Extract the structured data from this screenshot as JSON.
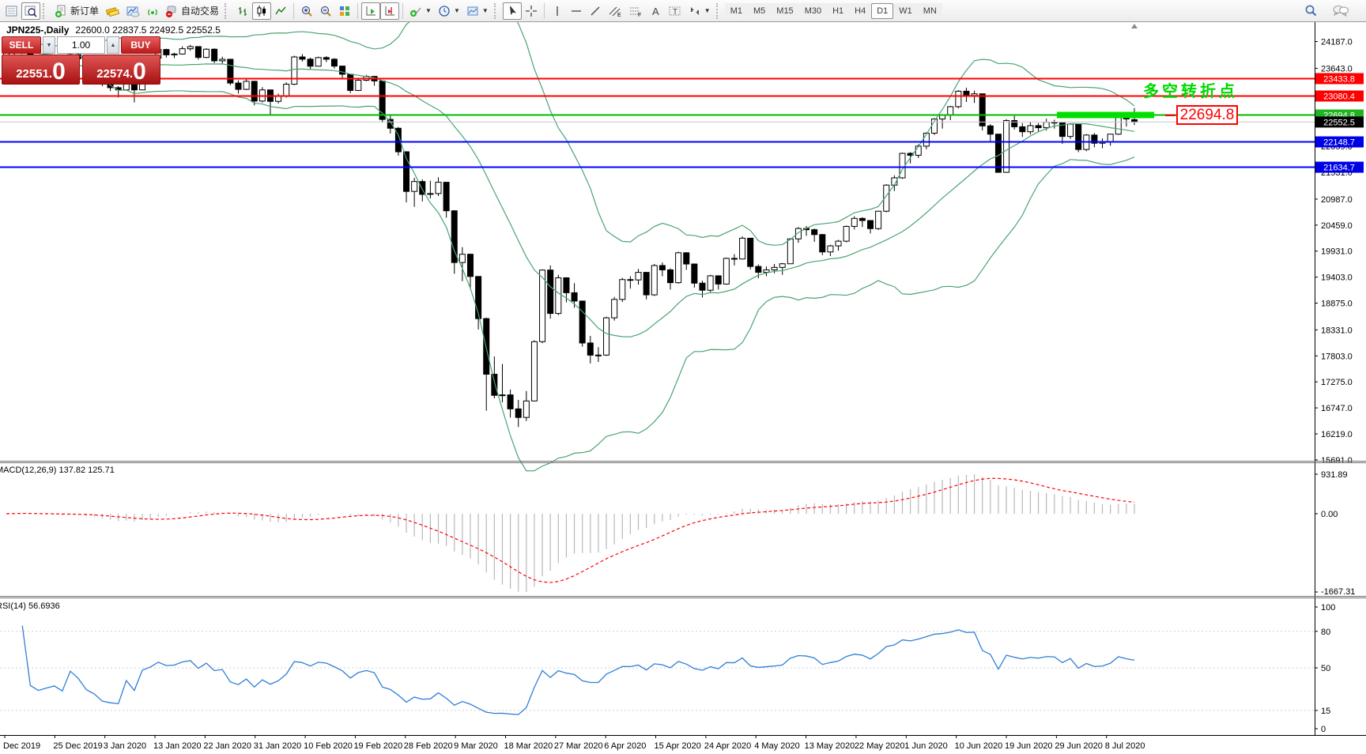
{
  "toolbar": {
    "new_order_label": "新订单",
    "autotrading_label": "自动交易",
    "timeframes": [
      "M1",
      "M5",
      "M15",
      "M30",
      "H1",
      "H4",
      "D1",
      "W1",
      "MN"
    ],
    "active_timeframe": "D1"
  },
  "chart_header": {
    "title": "JPN225-,Daily",
    "ohlc": "22600.0 22837.5 22492.5 22552.5"
  },
  "trade_panel": {
    "sell_label": "SELL",
    "buy_label": "BUY",
    "volume": "1.00",
    "sell_price_main": "22551.",
    "sell_price_pips": "0",
    "buy_price_main": "22574.",
    "buy_price_pips": "0"
  },
  "annotations": {
    "turning_point": "多空转折点",
    "turning_point_color": "#00d800",
    "callout": "22694.8",
    "callout_color": "#ff0000"
  },
  "levels": [
    {
      "value": 23433.8,
      "label": "23433.8",
      "line": "#ff0000",
      "badge": "#ff0000",
      "width": 2
    },
    {
      "value": 23080.4,
      "label": "23080.4",
      "line": "#ff0000",
      "badge": "#ff0000",
      "width": 2
    },
    {
      "value": 22694.8,
      "label": "22694.8",
      "line": "#00bb00",
      "badge": "#22b322",
      "width": 2
    },
    {
      "value": 22552.5,
      "label": "22552.5",
      "line": "#c8c8c8",
      "badge": "#000000",
      "width": 1
    },
    {
      "value": 22148.7,
      "label": "22148.7",
      "line": "#0000ff",
      "badge": "#0000e6",
      "width": 2
    },
    {
      "value": 21634.7,
      "label": "21634.7",
      "line": "#0000ff",
      "badge": "#0000e6",
      "width": 2
    }
  ],
  "highlight": {
    "price": 22694.8,
    "x_from": 1337,
    "x_to": 1460,
    "color": "#00e000",
    "thickness": 8
  },
  "axis": {
    "main_ticks": [
      "24187.0",
      "23643.0",
      "22059.0",
      "21531.0",
      "20987.0",
      "20459.0",
      "19931.0",
      "19403.0",
      "18875.0",
      "18331.0",
      "17803.0",
      "17275.0",
      "16747.0",
      "16219.0",
      "15691.0"
    ]
  },
  "macd": {
    "label": "MACD(12,26,9) 137.82 125.71",
    "fast": 12,
    "slow": 26,
    "signal": 9,
    "values": [
      "137.82",
      "125.71"
    ],
    "axis_top": "931.89",
    "axis_zero": "0.00",
    "axis_bottom": "-1667.31",
    "hist_color": "#b8b8b8",
    "signal_color": "#ff0000"
  },
  "rsi": {
    "label": "RSI(14) 56.6936",
    "period": 14,
    "value": "56.6936",
    "axis": [
      "100",
      "80",
      "50",
      "15",
      "0"
    ],
    "level_lines": [
      80,
      50,
      15
    ],
    "line_color": "#2f7ed8"
  },
  "dates": [
    "Dec 2019",
    "25 Dec 2019",
    "3 Jan 2020",
    "13 Jan 2020",
    "22 Jan 2020",
    "31 Jan 2020",
    "10 Feb 2020",
    "19 Feb 2020",
    "28 Feb 2020",
    "9 Mar 2020",
    "18 Mar 2020",
    "27 Mar 2020",
    "6 Apr 2020",
    "15 Apr 2020",
    "24 Apr 2020",
    "4 May 2020",
    "13 May 2020",
    "22 May 2020",
    "1 Jun 2020",
    "10 Jun 2020",
    "19 Jun 2020",
    "29 Jun 2020",
    "8 Jul 2020"
  ],
  "chart_data": {
    "type": "candlestick",
    "symbol": "JPN225-",
    "period": "Daily",
    "ylim": [
      15673,
      24581
    ],
    "colors": {
      "up": "#ffffff",
      "down": "#000000",
      "wick": "#000000"
    },
    "indicators": {
      "bollinger": {
        "period": 20,
        "deviation": 2,
        "color": "#4aa473"
      }
    },
    "candles": [
      [
        23900,
        24030,
        23850,
        23950
      ],
      [
        23950,
        24090,
        23900,
        24060
      ],
      [
        24060,
        24080,
        23950,
        24040
      ],
      [
        24040,
        24060,
        23800,
        23860
      ],
      [
        23860,
        23900,
        23760,
        23820
      ],
      [
        23820,
        23880,
        23770,
        23830
      ],
      [
        23830,
        23890,
        23780,
        23840
      ],
      [
        23840,
        23860,
        23740,
        23790
      ],
      [
        23790,
        23950,
        23780,
        23920
      ],
      [
        23920,
        23940,
        23790,
        23840
      ],
      [
        23840,
        23860,
        23600,
        23660
      ],
      [
        23660,
        23700,
        23480,
        23560
      ],
      [
        23560,
        23620,
        23280,
        23320
      ],
      [
        23320,
        23380,
        23180,
        23250
      ],
      [
        23250,
        23280,
        23050,
        23205
      ],
      [
        23205,
        23600,
        23190,
        23575
      ],
      [
        23575,
        23580,
        22950,
        23205
      ],
      [
        23205,
        23760,
        23200,
        23740
      ],
      [
        23740,
        23900,
        23700,
        23850
      ],
      [
        23850,
        24060,
        23840,
        24025
      ],
      [
        24025,
        24040,
        23860,
        23917
      ],
      [
        23917,
        23960,
        23850,
        23933
      ],
      [
        23933,
        24090,
        23920,
        24041
      ],
      [
        24041,
        24120,
        24000,
        24084
      ],
      [
        24084,
        24090,
        23820,
        23864
      ],
      [
        23864,
        24050,
        23850,
        24031
      ],
      [
        24031,
        24050,
        23750,
        23795
      ],
      [
        23795,
        23880,
        23740,
        23827
      ],
      [
        23827,
        23830,
        23300,
        23344
      ],
      [
        23344,
        23400,
        23130,
        23216
      ],
      [
        23216,
        23420,
        23200,
        23379
      ],
      [
        23379,
        23390,
        22890,
        22978
      ],
      [
        22978,
        23260,
        22950,
        23205
      ],
      [
        23205,
        23210,
        22700,
        22972
      ],
      [
        22972,
        23130,
        22930,
        23085
      ],
      [
        23085,
        23360,
        23050,
        23320
      ],
      [
        23320,
        23900,
        23300,
        23874
      ],
      [
        23874,
        23930,
        23780,
        23828
      ],
      [
        23828,
        23860,
        23610,
        23686
      ],
      [
        23686,
        23880,
        23680,
        23861
      ],
      [
        23861,
        23890,
        23770,
        23828
      ],
      [
        23828,
        23850,
        23640,
        23688
      ],
      [
        23688,
        23700,
        23450,
        23523
      ],
      [
        23523,
        23530,
        23140,
        23194
      ],
      [
        23194,
        23430,
        23180,
        23401
      ],
      [
        23401,
        23510,
        23380,
        23479
      ],
      [
        23479,
        23490,
        23290,
        23387
      ],
      [
        23387,
        23390,
        22540,
        22605
      ],
      [
        22605,
        22710,
        22320,
        22426
      ],
      [
        22426,
        22450,
        21870,
        21948
      ],
      [
        21948,
        21960,
        20920,
        21143
      ],
      [
        21143,
        21420,
        20830,
        21344
      ],
      [
        21344,
        21390,
        20940,
        21083
      ],
      [
        21083,
        21360,
        21000,
        21100
      ],
      [
        21100,
        21430,
        21050,
        21329
      ],
      [
        21329,
        21330,
        20610,
        20750
      ],
      [
        20750,
        20760,
        19470,
        19699
      ],
      [
        19699,
        20010,
        19320,
        19867
      ],
      [
        19867,
        19880,
        19150,
        19416
      ],
      [
        19416,
        19420,
        18340,
        18560
      ],
      [
        18560,
        18580,
        16690,
        17431
      ],
      [
        17431,
        17790,
        16940,
        17002
      ],
      [
        17002,
        17640,
        16860,
        17011
      ],
      [
        17011,
        17120,
        16550,
        16727
      ],
      [
        16727,
        16910,
        16358,
        16553
      ],
      [
        16553,
        17090,
        16480,
        16888
      ],
      [
        16888,
        18120,
        16880,
        18092
      ],
      [
        18092,
        19560,
        18060,
        19546
      ],
      [
        19546,
        19640,
        18560,
        18665
      ],
      [
        18665,
        19450,
        18630,
        19389
      ],
      [
        19389,
        19400,
        18890,
        19085
      ],
      [
        19085,
        19280,
        18780,
        18917
      ],
      [
        18917,
        18920,
        17990,
        18065
      ],
      [
        18065,
        18210,
        17650,
        17818
      ],
      [
        17818,
        17980,
        17680,
        17820
      ],
      [
        17820,
        18600,
        17800,
        18576
      ],
      [
        18576,
        19000,
        18520,
        18950
      ],
      [
        18950,
        19390,
        18900,
        19353
      ],
      [
        19353,
        19420,
        19170,
        19346
      ],
      [
        19346,
        19570,
        19250,
        19499
      ],
      [
        19499,
        19500,
        18950,
        19043
      ],
      [
        19043,
        19670,
        19020,
        19638
      ],
      [
        19638,
        19700,
        19420,
        19550
      ],
      [
        19550,
        19580,
        19150,
        19290
      ],
      [
        19290,
        19920,
        19270,
        19897
      ],
      [
        19897,
        19910,
        19550,
        19669
      ],
      [
        19669,
        19680,
        19190,
        19280
      ],
      [
        19280,
        19330,
        18990,
        19137
      ],
      [
        19137,
        19450,
        19100,
        19429
      ],
      [
        19429,
        19440,
        19150,
        19262
      ],
      [
        19262,
        19800,
        19250,
        19783
      ],
      [
        19783,
        19870,
        19640,
        19771
      ],
      [
        19771,
        20230,
        19760,
        20193
      ],
      [
        20193,
        20200,
        19560,
        19619
      ],
      [
        19619,
        19660,
        19380,
        19500
      ],
      [
        19500,
        19620,
        19420,
        19550
      ],
      [
        19550,
        19670,
        19480,
        19600
      ],
      [
        19600,
        19690,
        19450,
        19674
      ],
      [
        19674,
        20190,
        19670,
        20179
      ],
      [
        20179,
        20420,
        20100,
        20390
      ],
      [
        20390,
        20440,
        20240,
        20366
      ],
      [
        20366,
        20390,
        20120,
        20267
      ],
      [
        20267,
        20280,
        19850,
        19914
      ],
      [
        19914,
        20060,
        19830,
        20037
      ],
      [
        20037,
        20160,
        19940,
        20133
      ],
      [
        20133,
        20450,
        20110,
        20433
      ],
      [
        20433,
        20640,
        20370,
        20595
      ],
      [
        20595,
        20620,
        20420,
        20552
      ],
      [
        20552,
        20560,
        20290,
        20388
      ],
      [
        20388,
        20750,
        20360,
        20741
      ],
      [
        20741,
        21290,
        20720,
        21271
      ],
      [
        21271,
        21470,
        21150,
        21419
      ],
      [
        21419,
        21930,
        21400,
        21916
      ],
      [
        21916,
        21940,
        21710,
        21877
      ],
      [
        21877,
        22100,
        21820,
        22062
      ],
      [
        22062,
        22340,
        22000,
        22326
      ],
      [
        22326,
        22630,
        22290,
        22614
      ],
      [
        22614,
        22700,
        22420,
        22696
      ],
      [
        22696,
        22880,
        22590,
        22864
      ],
      [
        22864,
        23200,
        22830,
        23178
      ],
      [
        23178,
        23250,
        22960,
        23091
      ],
      [
        23091,
        23190,
        22940,
        23125
      ],
      [
        23125,
        23130,
        22380,
        22473
      ],
      [
        22473,
        22510,
        22150,
        22306
      ],
      [
        22306,
        22310,
        21530,
        21531
      ],
      [
        21531,
        22610,
        21520,
        22582
      ],
      [
        22582,
        22690,
        22400,
        22456
      ],
      [
        22456,
        22530,
        22250,
        22355
      ],
      [
        22355,
        22560,
        22300,
        22479
      ],
      [
        22479,
        22530,
        22360,
        22437
      ],
      [
        22437,
        22620,
        22380,
        22549
      ],
      [
        22549,
        22600,
        22420,
        22534
      ],
      [
        22534,
        22540,
        22110,
        22260
      ],
      [
        22260,
        22520,
        22210,
        22512
      ],
      [
        22512,
        22515,
        21940,
        21995
      ],
      [
        21995,
        22310,
        21960,
        22288
      ],
      [
        22288,
        22330,
        22040,
        22122
      ],
      [
        22122,
        22220,
        22020,
        22146
      ],
      [
        22146,
        22310,
        22070,
        22306
      ],
      [
        22306,
        22720,
        22290,
        22714
      ],
      [
        22714,
        22740,
        22460,
        22615
      ],
      [
        22600,
        22837.5,
        22492.5,
        22552.5
      ]
    ]
  }
}
